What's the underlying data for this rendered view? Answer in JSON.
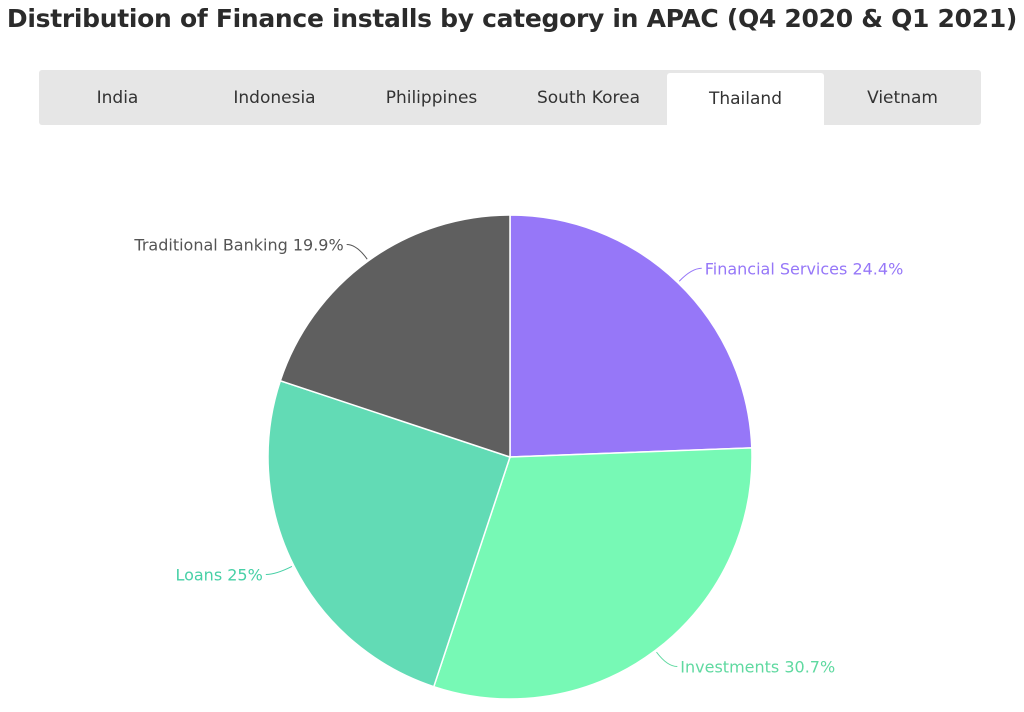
{
  "title": "Distribution of Finance installs by category in APAC (Q4 2020 & Q1 2021)",
  "tabs": [
    {
      "label": "India",
      "active": false
    },
    {
      "label": "Indonesia",
      "active": false
    },
    {
      "label": "Philippines",
      "active": false
    },
    {
      "label": "South Korea",
      "active": false
    },
    {
      "label": "Thailand",
      "active": true
    },
    {
      "label": "Vietnam",
      "active": false
    }
  ],
  "chart_data": {
    "type": "pie",
    "slices": [
      {
        "label": "Financial Services",
        "value": 24.4,
        "display": "Financial Services 24.4%",
        "color": "#9677f8",
        "label_color": "#9677f8"
      },
      {
        "label": "Investments",
        "value": 30.7,
        "display": "Investments 30.7%",
        "color": "#77f9b5",
        "label_color": "#5fd9a0"
      },
      {
        "label": "Loans",
        "value": 25,
        "display": "Loans 25%",
        "color": "#62dbb5",
        "label_color": "#47d0a6"
      },
      {
        "label": "Traditional Banking",
        "value": 19.9,
        "display": "Traditional Banking 19.9%",
        "color": "#5f5f5f",
        "label_color": "#555555"
      }
    ]
  }
}
